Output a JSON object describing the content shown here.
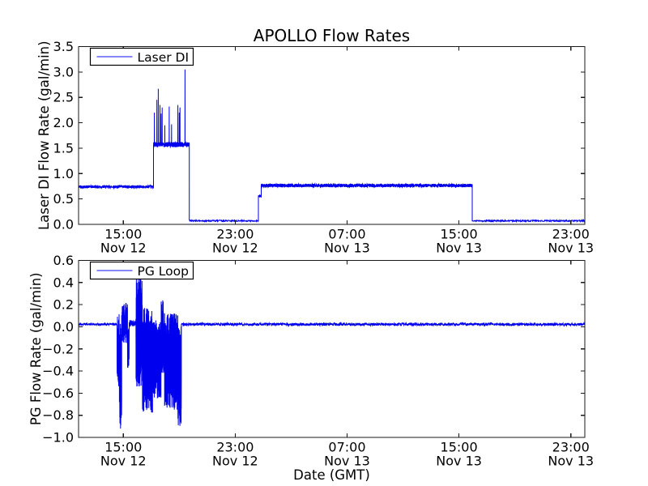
{
  "figure": {
    "background": "#ffffff",
    "axis_color": "#1a1a1a",
    "line_color": "#0000ee"
  },
  "chart_data": [
    {
      "type": "line",
      "title": "APOLLO Flow Rates",
      "ylabel": "Laser DI Flow Rate (gal/min)",
      "legend": {
        "label": "Laser DI",
        "position": "upper left"
      },
      "grid": false,
      "ylim": [
        0.0,
        3.5
      ],
      "yticks": [
        {
          "v": 0.0,
          "label": "0.0"
        },
        {
          "v": 0.5,
          "label": "0.5"
        },
        {
          "v": 1.0,
          "label": "1.0"
        },
        {
          "v": 1.5,
          "label": "1.5"
        },
        {
          "v": 2.0,
          "label": "2.0"
        },
        {
          "v": 2.5,
          "label": "2.5"
        },
        {
          "v": 3.0,
          "label": "3.0"
        },
        {
          "v": 3.5,
          "label": "3.5"
        }
      ],
      "xlim_hours_from_nov12_noon": [
        -0.2,
        36.0
      ],
      "xticks": [
        {
          "t": 3,
          "time": "15:00",
          "date": "Nov 12"
        },
        {
          "t": 11,
          "time": "23:00",
          "date": "Nov 12"
        },
        {
          "t": 19,
          "time": "07:00",
          "date": "Nov 13"
        },
        {
          "t": 27,
          "time": "15:00",
          "date": "Nov 13"
        },
        {
          "t": 35,
          "time": "23:00",
          "date": "Nov 13"
        }
      ],
      "series": {
        "name": "Laser DI",
        "color": "#0000ee",
        "segments": [
          {
            "t0": -0.2,
            "t1": 5.16,
            "lo": 0.71,
            "hi": 0.77,
            "dt": 0.01
          },
          {
            "t0": 5.16,
            "t1": 7.72,
            "lo": 1.52,
            "hi": 1.62,
            "dt": 0.006
          },
          {
            "t0": 7.72,
            "t1": 12.66,
            "lo": 0.055,
            "hi": 0.085,
            "dt": 0.02
          },
          {
            "t0": 12.66,
            "t1": 12.86,
            "lo": 0.53,
            "hi": 0.58,
            "dt": 0.006
          },
          {
            "t0": 12.86,
            "t1": 27.95,
            "lo": 0.73,
            "hi": 0.8,
            "dt": 0.008
          },
          {
            "t0": 27.95,
            "t1": 36.0,
            "lo": 0.055,
            "hi": 0.085,
            "dt": 0.02
          }
        ],
        "spikes": [
          {
            "t": 5.22,
            "v": 2.2
          },
          {
            "t": 5.4,
            "v": 2.45
          },
          {
            "t": 5.5,
            "v": 2.67
          },
          {
            "t": 5.62,
            "v": 2.35
          },
          {
            "t": 5.7,
            "v": 2.18
          },
          {
            "t": 5.78,
            "v": 2.3
          },
          {
            "t": 5.97,
            "v": 1.95
          },
          {
            "t": 6.28,
            "v": 2.32
          },
          {
            "t": 6.45,
            "v": 1.97
          },
          {
            "t": 6.9,
            "v": 2.35
          },
          {
            "t": 7.0,
            "v": 2.2
          },
          {
            "t": 7.05,
            "v": 2.3
          },
          {
            "t": 7.41,
            "v": 3.05
          }
        ]
      }
    },
    {
      "type": "line",
      "xlabel": "Date (GMT)",
      "ylabel": "PG Flow Rate (gal/min)",
      "legend": {
        "label": "PG Loop",
        "position": "upper left"
      },
      "grid": false,
      "ylim": [
        -1.0,
        0.6
      ],
      "yticks": [
        {
          "v": -1.0,
          "label": "−1.0"
        },
        {
          "v": -0.8,
          "label": "−0.8"
        },
        {
          "v": -0.6,
          "label": "−0.6"
        },
        {
          "v": -0.4,
          "label": "−0.4"
        },
        {
          "v": -0.2,
          "label": "−0.2"
        },
        {
          "v": 0.0,
          "label": "0.0"
        },
        {
          "v": 0.2,
          "label": "0.2"
        },
        {
          "v": 0.4,
          "label": "0.4"
        },
        {
          "v": 0.6,
          "label": "0.6"
        }
      ],
      "xlim_hours_from_nov12_noon": [
        -0.2,
        36.0
      ],
      "xticks": [
        {
          "t": 3,
          "time": "15:00",
          "date": "Nov 12"
        },
        {
          "t": 11,
          "time": "23:00",
          "date": "Nov 12"
        },
        {
          "t": 19,
          "time": "07:00",
          "date": "Nov 13"
        },
        {
          "t": 27,
          "time": "15:00",
          "date": "Nov 13"
        },
        {
          "t": 35,
          "time": "23:00",
          "date": "Nov 13"
        }
      ],
      "series": {
        "name": "PG Loop",
        "color": "#0000ee",
        "segments": [
          {
            "t0": -0.2,
            "t1": 2.55,
            "lo": 0.012,
            "hi": 0.032,
            "dt": 0.015
          },
          {
            "t0": 2.55,
            "t1": 2.72,
            "lo": -0.55,
            "hi": 0.12,
            "dt": 0.004
          },
          {
            "t0": 2.72,
            "t1": 2.88,
            "lo": -0.92,
            "hi": 0.05,
            "dt": 0.004
          },
          {
            "t0": 2.88,
            "t1": 3.3,
            "lo": -0.15,
            "hi": 0.22,
            "dt": 0.004
          },
          {
            "t0": 3.3,
            "t1": 3.42,
            "lo": -0.38,
            "hi": 0.05,
            "dt": 0.004
          },
          {
            "t0": 3.42,
            "t1": 3.9,
            "lo": 0.0,
            "hi": 0.06,
            "dt": 0.008
          },
          {
            "t0": 3.9,
            "t1": 4.35,
            "lo": -0.55,
            "hi": 0.45,
            "dt": 0.004
          },
          {
            "t0": 4.35,
            "t1": 5.1,
            "lo": -0.78,
            "hi": 0.18,
            "dt": 0.003
          },
          {
            "t0": 5.1,
            "t1": 5.7,
            "lo": -0.65,
            "hi": 0.06,
            "dt": 0.0035
          },
          {
            "t0": 5.7,
            "t1": 5.95,
            "lo": -0.42,
            "hi": 0.24,
            "dt": 0.004
          },
          {
            "t0": 5.95,
            "t1": 6.9,
            "lo": -0.75,
            "hi": 0.12,
            "dt": 0.003
          },
          {
            "t0": 6.9,
            "t1": 7.15,
            "lo": -0.9,
            "hi": 0.02,
            "dt": 0.004
          },
          {
            "t0": 7.15,
            "t1": 36.0,
            "lo": 0.01,
            "hi": 0.035,
            "dt": 0.015
          }
        ],
        "spikes": [
          {
            "t": 2.8,
            "v": -0.92
          },
          {
            "t": 4.18,
            "v": 0.47
          },
          {
            "t": 5.82,
            "v": 0.24
          }
        ]
      }
    }
  ]
}
